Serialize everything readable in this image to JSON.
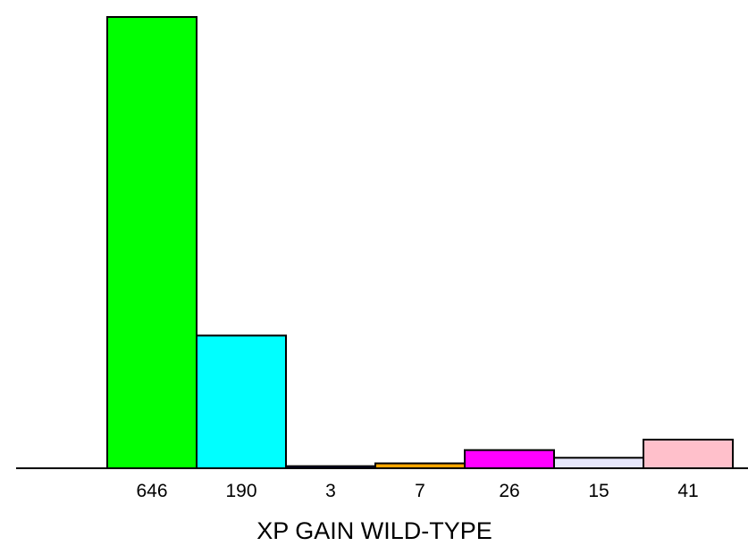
{
  "chart_data": {
    "type": "bar",
    "categories": [
      "646",
      "190",
      "3",
      "7",
      "26",
      "15",
      "41"
    ],
    "values": [
      646,
      190,
      3,
      7,
      26,
      15,
      41
    ],
    "colors": [
      "#00ff00",
      "#00ffff",
      "#000080",
      "#ffa500",
      "#ff00ff",
      "#e6e6fa",
      "#ffc0cb"
    ],
    "title": "",
    "xlabel": "XP GAIN WILD-TYPE",
    "ylabel": "",
    "ylim": [
      0,
      646
    ],
    "grid": false,
    "legend": "none"
  }
}
